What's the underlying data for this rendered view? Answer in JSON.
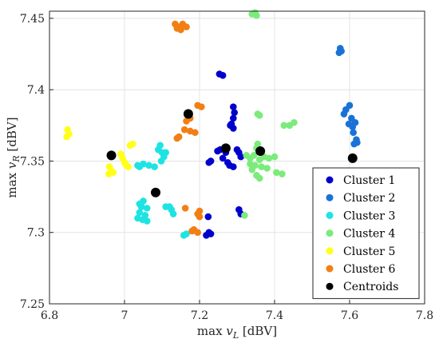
{
  "chart_data": {
    "type": "scatter",
    "title": "",
    "xlabel": {
      "main": "max ",
      "var": "v",
      "sub": "L",
      "unit": " [dBV]"
    },
    "ylabel": {
      "main": "max ",
      "var": "v",
      "sub": "R",
      "unit": " [dBV]"
    },
    "xlim": [
      6.8,
      7.8
    ],
    "ylim": [
      7.25,
      7.455
    ],
    "xticks": [
      "6.8",
      "7",
      "7.2",
      "7.4",
      "7.6",
      "7.8"
    ],
    "yticks": [
      "7.25",
      "7.3",
      "7.35",
      "7.4",
      "7.45"
    ],
    "xtick_values": [
      6.8,
      7.0,
      7.2,
      7.4,
      7.6,
      7.8
    ],
    "ytick_values": [
      7.25,
      7.3,
      7.35,
      7.4,
      7.45
    ],
    "grid": true,
    "legend_position": "bottom-right",
    "series": [
      {
        "name": "Cluster 1",
        "color": "#0000CC",
        "points": [
          [
            7.253,
            7.411
          ],
          [
            7.262,
            7.41
          ],
          [
            7.29,
            7.388
          ],
          [
            7.293,
            7.384
          ],
          [
            7.29,
            7.38
          ],
          [
            7.285,
            7.376
          ],
          [
            7.29,
            7.373
          ],
          [
            7.282,
            7.375
          ],
          [
            7.255,
            7.358
          ],
          [
            7.27,
            7.356
          ],
          [
            7.248,
            7.357
          ],
          [
            7.262,
            7.352
          ],
          [
            7.3,
            7.358
          ],
          [
            7.31,
            7.353
          ],
          [
            7.305,
            7.356
          ],
          [
            7.23,
            7.35
          ],
          [
            7.225,
            7.349
          ],
          [
            7.28,
            7.347
          ],
          [
            7.29,
            7.346
          ],
          [
            7.275,
            7.349
          ],
          [
            7.305,
            7.316
          ],
          [
            7.31,
            7.313
          ],
          [
            7.223,
            7.311
          ],
          [
            7.225,
            7.3
          ],
          [
            7.218,
            7.298
          ],
          [
            7.23,
            7.299
          ]
        ]
      },
      {
        "name": "Cluster 2",
        "color": "#1A72D6",
        "points": [
          [
            7.575,
            7.429
          ],
          [
            7.578,
            7.427
          ],
          [
            7.572,
            7.426
          ],
          [
            7.6,
            7.389
          ],
          [
            7.59,
            7.386
          ],
          [
            7.585,
            7.383
          ],
          [
            7.605,
            7.38
          ],
          [
            7.598,
            7.376
          ],
          [
            7.608,
            7.374
          ],
          [
            7.615,
            7.377
          ],
          [
            7.61,
            7.37
          ],
          [
            7.618,
            7.365
          ],
          [
            7.612,
            7.362
          ],
          [
            7.62,
            7.363
          ]
        ]
      },
      {
        "name": "Cluster 3",
        "color": "#1FE3E3",
        "points": [
          [
            7.095,
            7.361
          ],
          [
            7.09,
            7.358
          ],
          [
            7.1,
            7.356
          ],
          [
            7.105,
            7.353
          ],
          [
            7.098,
            7.35
          ],
          [
            7.11,
            7.356
          ],
          [
            7.05,
            7.348
          ],
          [
            7.065,
            7.347
          ],
          [
            7.08,
            7.346
          ],
          [
            7.04,
            7.346
          ],
          [
            7.035,
            7.347
          ],
          [
            7.05,
            7.322
          ],
          [
            7.045,
            7.318
          ],
          [
            7.06,
            7.317
          ],
          [
            7.04,
            7.314
          ],
          [
            7.055,
            7.312
          ],
          [
            7.035,
            7.31
          ],
          [
            7.06,
            7.308
          ],
          [
            7.048,
            7.309
          ],
          [
            7.04,
            7.32
          ],
          [
            7.11,
            7.318
          ],
          [
            7.125,
            7.316
          ],
          [
            7.13,
            7.313
          ],
          [
            7.12,
            7.318
          ],
          [
            7.165,
            7.299
          ],
          [
            7.158,
            7.298
          ]
        ]
      },
      {
        "name": "Cluster 4",
        "color": "#7BEB7B",
        "points": [
          [
            7.34,
            7.453
          ],
          [
            7.348,
            7.454
          ],
          [
            7.352,
            7.452
          ],
          [
            7.355,
            7.383
          ],
          [
            7.36,
            7.382
          ],
          [
            7.425,
            7.375
          ],
          [
            7.44,
            7.375
          ],
          [
            7.452,
            7.377
          ],
          [
            7.355,
            7.362
          ],
          [
            7.352,
            7.359
          ],
          [
            7.325,
            7.354
          ],
          [
            7.335,
            7.352
          ],
          [
            7.345,
            7.354
          ],
          [
            7.36,
            7.351
          ],
          [
            7.372,
            7.353
          ],
          [
            7.385,
            7.352
          ],
          [
            7.335,
            7.348
          ],
          [
            7.348,
            7.347
          ],
          [
            7.365,
            7.346
          ],
          [
            7.38,
            7.345
          ],
          [
            7.34,
            7.344
          ],
          [
            7.4,
            7.353
          ],
          [
            7.405,
            7.342
          ],
          [
            7.42,
            7.341
          ],
          [
            7.36,
            7.338
          ],
          [
            7.352,
            7.34
          ],
          [
            7.32,
            7.312
          ]
        ]
      },
      {
        "name": "Cluster 5",
        "color": "#FFFF1A",
        "points": [
          [
            6.848,
            7.372
          ],
          [
            6.852,
            7.369
          ],
          [
            6.846,
            7.367
          ],
          [
            6.99,
            7.355
          ],
          [
            6.995,
            7.352
          ],
          [
            7.0,
            7.349
          ],
          [
            7.005,
            7.347
          ],
          [
            7.01,
            7.346
          ],
          [
            7.015,
            7.361
          ],
          [
            7.022,
            7.362
          ],
          [
            6.96,
            7.346
          ],
          [
            6.965,
            7.343
          ],
          [
            6.958,
            7.341
          ],
          [
            6.97,
            7.342
          ]
        ]
      },
      {
        "name": "Cluster 6",
        "color": "#F27F14",
        "points": [
          [
            7.135,
            7.446
          ],
          [
            7.145,
            7.444
          ],
          [
            7.155,
            7.446
          ],
          [
            7.165,
            7.444
          ],
          [
            7.15,
            7.442
          ],
          [
            7.14,
            7.443
          ],
          [
            7.195,
            7.389
          ],
          [
            7.205,
            7.388
          ],
          [
            7.175,
            7.38
          ],
          [
            7.165,
            7.378
          ],
          [
            7.16,
            7.372
          ],
          [
            7.175,
            7.371
          ],
          [
            7.188,
            7.37
          ],
          [
            7.145,
            7.367
          ],
          [
            7.14,
            7.366
          ],
          [
            7.2,
            7.315
          ],
          [
            7.195,
            7.313
          ],
          [
            7.2,
            7.311
          ],
          [
            7.162,
            7.317
          ],
          [
            7.18,
            7.301
          ],
          [
            7.195,
            7.3
          ],
          [
            7.185,
            7.302
          ]
        ]
      }
    ],
    "centroids": {
      "name": "Centroids",
      "color": "#000000",
      "points": [
        [
          6.965,
          7.354
        ],
        [
          7.083,
          7.328
        ],
        [
          7.17,
          7.383
        ],
        [
          7.27,
          7.359
        ],
        [
          7.362,
          7.357
        ],
        [
          7.608,
          7.352
        ]
      ]
    }
  }
}
